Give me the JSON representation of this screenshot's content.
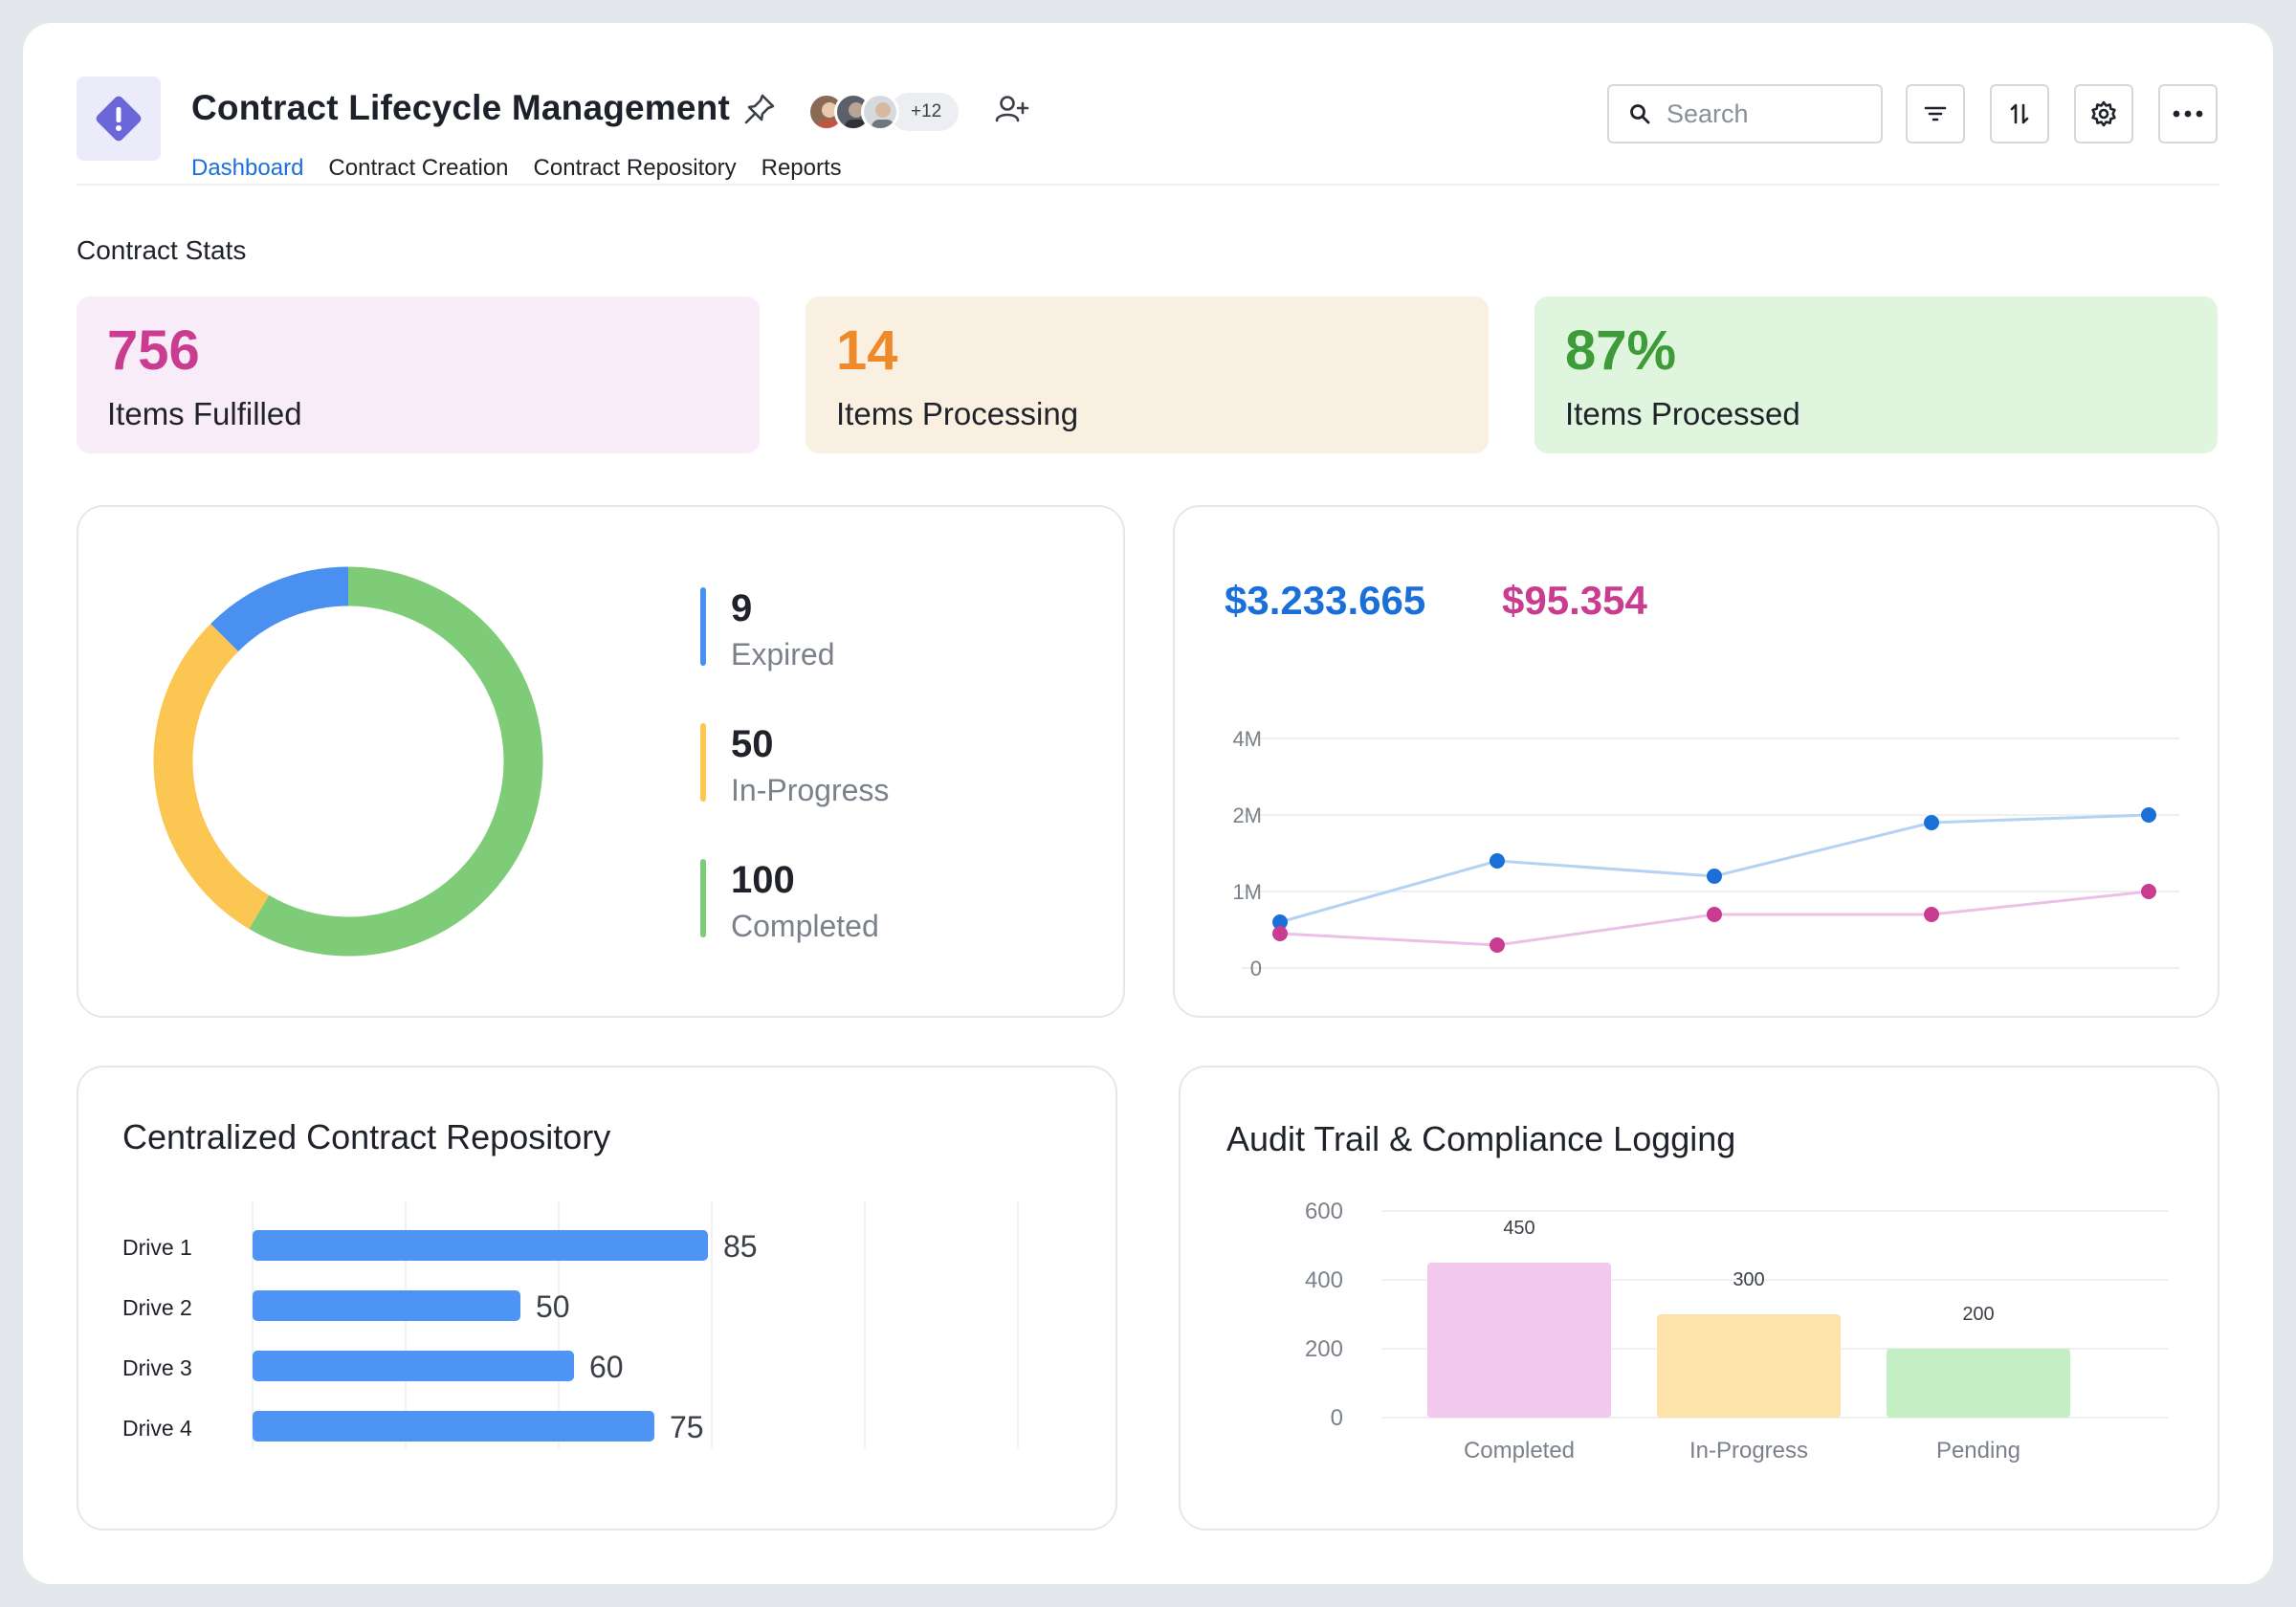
{
  "header": {
    "title": "Contract Lifecycle Management",
    "more_members": "+12",
    "search_placeholder": "Search",
    "tabs": [
      {
        "label": "Dashboard",
        "active": true
      },
      {
        "label": "Contract Creation",
        "active": false
      },
      {
        "label": "Contract Repository",
        "active": false
      },
      {
        "label": "Reports",
        "active": false
      }
    ],
    "icons": [
      "pin-icon",
      "add-user-icon",
      "filter-icon",
      "sort-icon",
      "settings-icon",
      "more-icon"
    ]
  },
  "stats": {
    "section_label": "Contract Stats",
    "cards": [
      {
        "value": "756",
        "label": "Items Fulfilled",
        "color": "#c93c8f",
        "bg": "#f8ecf8"
      },
      {
        "value": "14",
        "label": "Items Processing",
        "color": "#ef8a2c",
        "bg": "#faf0e2"
      },
      {
        "value": "87%",
        "label": "Items Processed",
        "color": "#3e9b3a",
        "bg": "#dff5de"
      }
    ]
  },
  "status_donut": {
    "items": [
      {
        "value": "9",
        "label": "Expired",
        "color": "#4a90f0"
      },
      {
        "value": "50",
        "label": "In-Progress",
        "color": "#fcc653"
      },
      {
        "value": "100",
        "label": "Completed",
        "color": "#7fcc78"
      }
    ]
  },
  "value_trend": {
    "values": [
      {
        "text": "$3.233.665",
        "color": "#1a6fd8"
      },
      {
        "text": "$95.354",
        "color": "#c93c8f"
      }
    ],
    "y_ticks": [
      "4M",
      "2M",
      "1M",
      "0"
    ]
  },
  "repository": {
    "title": "Centralized Contract Repository",
    "color": "#4d94f5"
  },
  "audit": {
    "title": "Audit Trail & Compliance Logging",
    "y_ticks": [
      "600",
      "400",
      "200",
      "0"
    ],
    "colors": [
      "#f3c8ef",
      "#fde3aa",
      "#c4efc4"
    ]
  },
  "chart_data": [
    {
      "type": "pie",
      "title": "",
      "categories": [
        "Expired",
        "In-Progress",
        "Completed"
      ],
      "values": [
        9,
        50,
        100
      ],
      "donut_share_estimate": [
        0.125,
        0.29,
        0.585
      ]
    },
    {
      "type": "line",
      "title": "",
      "x": [
        1,
        2,
        3,
        4,
        5
      ],
      "y_ticks": [
        "0",
        "1M",
        "2M",
        "4M"
      ],
      "series": [
        {
          "values": [
            0.6,
            1.4,
            1.2,
            1.9,
            2.0
          ],
          "unit_note_scale": "tick-index"
        },
        {
          "values": [
            0.45,
            0.3,
            0.7,
            0.7,
            1.0
          ],
          "unit_note_scale": "tick-index"
        }
      ]
    },
    {
      "type": "bar",
      "title": "Centralized Contract Repository",
      "orientation": "horizontal",
      "categories": [
        "Drive 1",
        "Drive 2",
        "Drive 3",
        "Drive 4"
      ],
      "values": [
        85,
        50,
        60,
        75
      ],
      "xlim": [
        0,
        100
      ]
    },
    {
      "type": "bar",
      "title": "Audit Trail & Compliance Logging",
      "categories": [
        "Completed",
        "In-Progress",
        "Pending"
      ],
      "values": [
        450,
        300,
        200
      ],
      "ylim": [
        0,
        600
      ]
    }
  ]
}
